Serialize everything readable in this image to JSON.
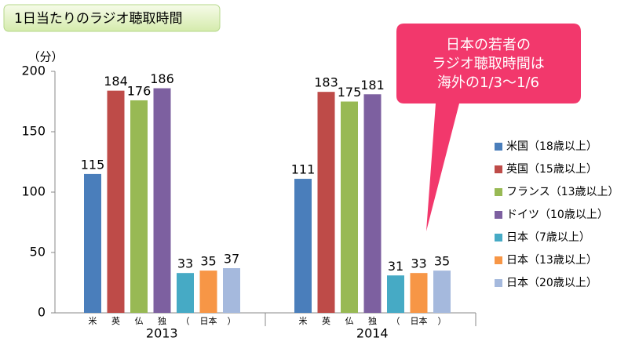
{
  "chart_data": {
    "type": "bar",
    "title": "1日当たりのラジオ聴取時間",
    "y_unit": "（分）",
    "categories": [
      "2013",
      "2014"
    ],
    "bar_labels": [
      "米",
      "英",
      "仏",
      "独",
      "（",
      "日本",
      "）"
    ],
    "series": [
      {
        "name": "米国（18歳以上）",
        "color": "#4a7ebb",
        "values": [
          115,
          111
        ]
      },
      {
        "name": "英国（15歳以上）",
        "color": "#be4b48",
        "values": [
          184,
          183
        ]
      },
      {
        "name": "フランス（13歳以上）",
        "color": "#98b954",
        "values": [
          176,
          175
        ]
      },
      {
        "name": "ドイツ（10歳以上）",
        "color": "#7d60a0",
        "values": [
          186,
          181
        ]
      },
      {
        "name": "日本（7歳以上）",
        "color": "#46aac5",
        "values": [
          33,
          31
        ]
      },
      {
        "name": "日本（13歳以上）",
        "color": "#f79646",
        "values": [
          35,
          33
        ]
      },
      {
        "name": "日本（20歳以上）",
        "color": "#a5b9dd",
        "values": [
          37,
          35
        ]
      }
    ],
    "ylim": [
      0,
      200
    ],
    "yticks": [
      0,
      50,
      100,
      150,
      200
    ],
    "grid": false,
    "legend": "right",
    "callout": [
      "日本の若者の",
      "ラジオ聴取時間は",
      "海外の1/3～1/6"
    ]
  }
}
